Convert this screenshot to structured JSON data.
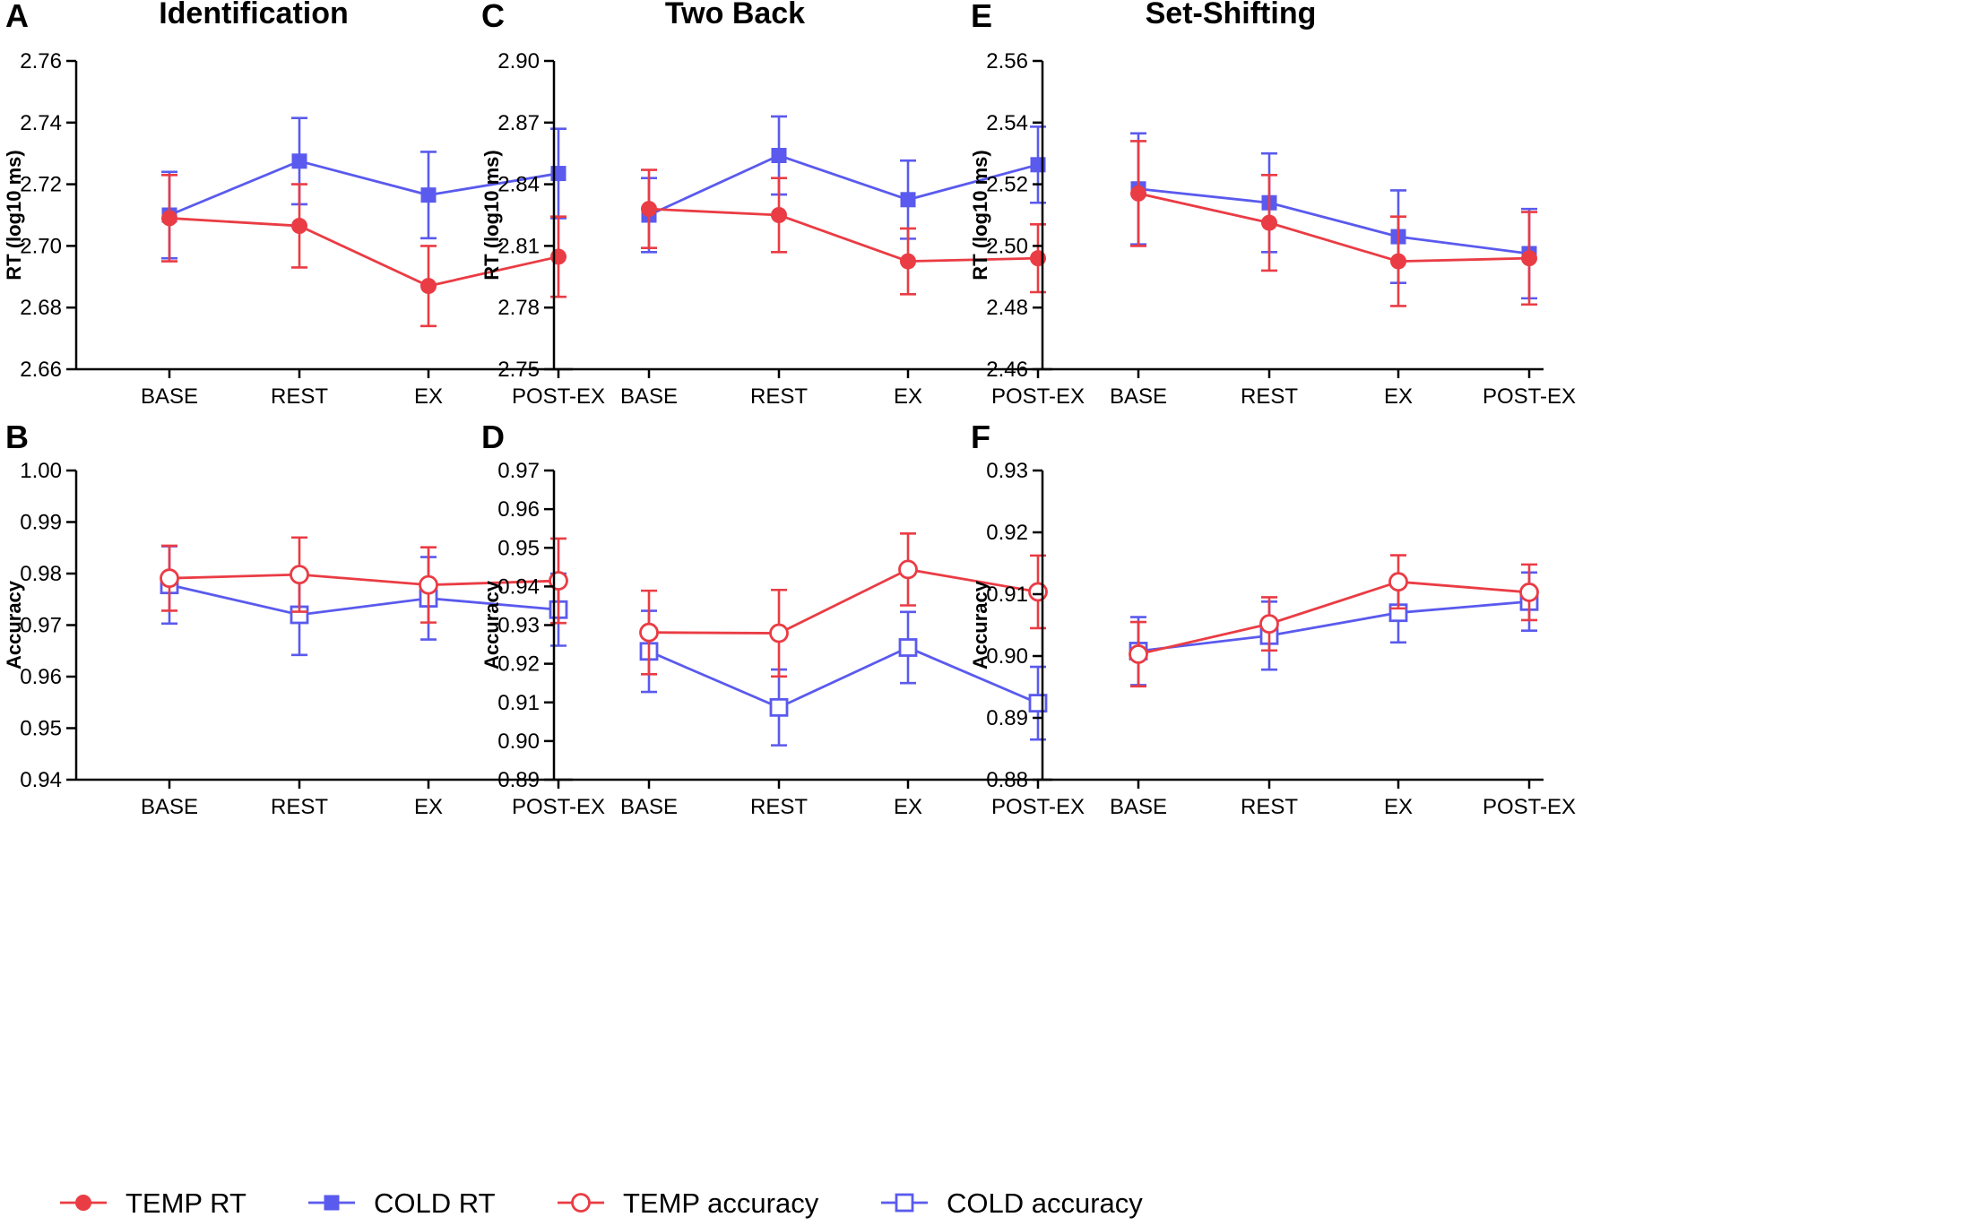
{
  "colors": {
    "temp": "#ea3c44",
    "cold": "#5a5aee"
  },
  "legend": [
    {
      "name": "TEMP RT",
      "color": "#ea3c44",
      "marker": "filled-circle"
    },
    {
      "name": "COLD RT",
      "color": "#5a5aee",
      "marker": "filled-square"
    },
    {
      "name": "TEMP accuracy",
      "color": "#ea3c44",
      "marker": "open-circle"
    },
    {
      "name": "COLD accuracy",
      "color": "#5a5aee",
      "marker": "open-square"
    }
  ],
  "chart_data": [
    {
      "panel": "A",
      "title": "Identification",
      "type": "line",
      "categories": [
        "BASE",
        "REST",
        "EX",
        "POST-EX"
      ],
      "ylabel": "RT (log10 ms)",
      "ylim": [
        2.66,
        2.76
      ],
      "yticks": [
        "2.66",
        "2.68",
        "2.70",
        "2.72",
        "2.74",
        "2.76"
      ],
      "series": [
        {
          "name": "COLD RT",
          "values": [
            2.71,
            2.7275,
            2.7165,
            2.7235
          ],
          "err": [
            0.014,
            0.014,
            0.014,
            0.0145
          ]
        },
        {
          "name": "TEMP RT",
          "values": [
            2.709,
            2.7065,
            2.687,
            2.6965
          ],
          "err": [
            0.014,
            0.0135,
            0.013,
            0.013
          ]
        }
      ]
    },
    {
      "panel": "B",
      "title": "",
      "type": "line",
      "categories": [
        "BASE",
        "REST",
        "EX",
        "POST-EX"
      ],
      "ylabel": "Accuracy",
      "ylim": [
        0.94,
        1.0
      ],
      "yticks": [
        "0.94",
        "0.95",
        "0.96",
        "0.97",
        "0.98",
        "0.99",
        "1.00"
      ],
      "series": [
        {
          "name": "COLD accuracy",
          "values": [
            0.9778,
            0.972,
            0.9752,
            0.973
          ],
          "err": [
            0.0075,
            0.0078,
            0.008,
            0.007
          ]
        },
        {
          "name": "TEMP accuracy",
          "values": [
            0.9791,
            0.9798,
            0.9778,
            0.9786
          ],
          "err": [
            0.0063,
            0.0072,
            0.0073,
            0.0082
          ]
        }
      ]
    },
    {
      "panel": "C",
      "title": "Two Back",
      "type": "line",
      "categories": [
        "BASE",
        "REST",
        "EX",
        "POST-EX"
      ],
      "ylabel": "RT (log10 ms)",
      "ylim": [
        2.75,
        2.9
      ],
      "yticks": [
        "2.75",
        "2.78",
        "2.81",
        "2.84",
        "2.87",
        "2.90"
      ],
      "series": [
        {
          "name": "COLD RT",
          "values": [
            2.825,
            2.854,
            2.8325,
            2.8495
          ],
          "err": [
            0.018,
            0.019,
            0.019,
            0.0185
          ]
        },
        {
          "name": "TEMP RT",
          "values": [
            2.828,
            2.825,
            2.8025,
            2.804
          ],
          "err": [
            0.019,
            0.018,
            0.016,
            0.0165
          ]
        }
      ]
    },
    {
      "panel": "D",
      "title": "",
      "type": "line",
      "categories": [
        "BASE",
        "REST",
        "EX",
        "POST-EX"
      ],
      "ylabel": "Accuracy",
      "ylim": [
        0.89,
        0.97
      ],
      "yticks": [
        "0.89",
        "0.90",
        "0.91",
        "0.92",
        "0.93",
        "0.94",
        "0.95",
        "0.96",
        "0.97"
      ],
      "series": [
        {
          "name": "COLD accuracy",
          "values": [
            0.9232,
            0.9087,
            0.9242,
            0.9098
          ],
          "err": [
            0.0105,
            0.0098,
            0.0092,
            0.0094
          ]
        },
        {
          "name": "TEMP accuracy",
          "values": [
            0.9281,
            0.9279,
            0.9444,
            0.9386
          ],
          "err": [
            0.0108,
            0.0112,
            0.0093,
            0.0094
          ]
        }
      ]
    },
    {
      "panel": "E",
      "title": "Set-Shifting",
      "type": "line",
      "categories": [
        "BASE",
        "REST",
        "EX",
        "POST-EX"
      ],
      "ylabel": "RT (log10 ms)",
      "ylim": [
        2.46,
        2.56
      ],
      "yticks": [
        "2.46",
        "2.48",
        "2.50",
        "2.52",
        "2.54",
        "2.56"
      ],
      "series": [
        {
          "name": "COLD RT",
          "values": [
            2.5185,
            2.514,
            2.503,
            2.4975
          ],
          "err": [
            0.018,
            0.016,
            0.015,
            0.0145
          ]
        },
        {
          "name": "TEMP RT",
          "values": [
            2.517,
            2.5075,
            2.495,
            2.496
          ],
          "err": [
            0.017,
            0.0155,
            0.0145,
            0.015
          ]
        }
      ]
    },
    {
      "panel": "F",
      "title": "",
      "type": "line",
      "categories": [
        "BASE",
        "REST",
        "EX",
        "POST-EX"
      ],
      "ylabel": "Accuracy",
      "ylim": [
        0.88,
        0.93
      ],
      "yticks": [
        "0.88",
        "0.89",
        "0.90",
        "0.91",
        "0.92",
        "0.93"
      ],
      "series": [
        {
          "name": "COLD accuracy",
          "values": [
            0.9008,
            0.9033,
            0.907,
            0.9088
          ],
          "err": [
            0.0055,
            0.0055,
            0.0048,
            0.0047
          ]
        },
        {
          "name": "TEMP accuracy",
          "values": [
            0.9003,
            0.9052,
            0.912,
            0.9103
          ],
          "err": [
            0.0052,
            0.0043,
            0.0043,
            0.0045
          ]
        }
      ]
    }
  ]
}
